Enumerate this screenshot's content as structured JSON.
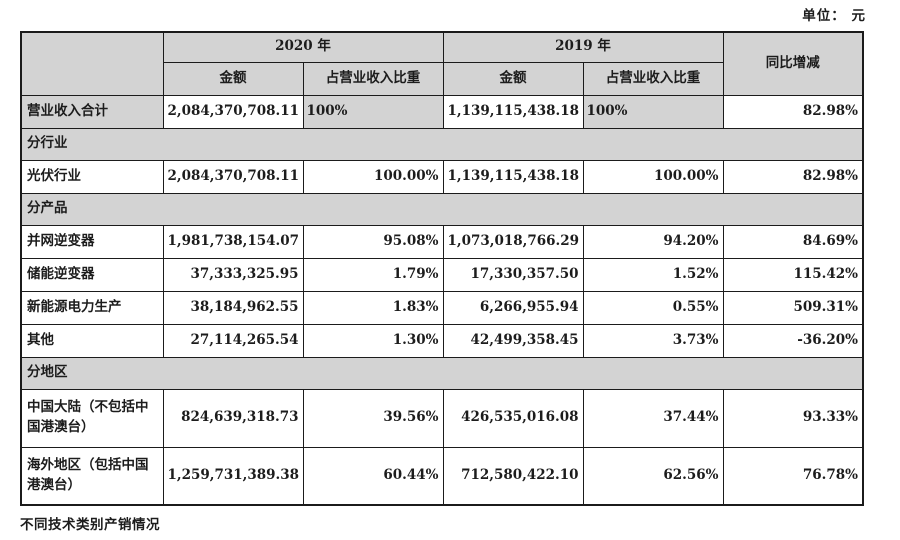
{
  "unit_label": "单位： 元",
  "footer_note": "不同技术类别产销情况",
  "table": {
    "header": {
      "corner": "",
      "year_2020": "2020 年",
      "year_2019": "2019 年",
      "amount": "金额",
      "ratio": "占营业收入比重",
      "yoy": "同比增减"
    },
    "colors": {
      "header_fill": "#d3d3d3",
      "border": "#1b1b1b",
      "cell_fill": "#ffffff"
    },
    "rows": [
      {
        "kind": "summary",
        "label": "营业收入合计",
        "amount_2020": "2,084,370,708.11",
        "ratio_2020": "100%",
        "amount_2019": "1,139,115,438.18",
        "ratio_2019": "100%",
        "yoy": "82.98%"
      },
      {
        "kind": "section",
        "label": "分行业"
      },
      {
        "kind": "data",
        "label": "光伏行业",
        "amount_2020": "2,084,370,708.11",
        "ratio_2020": "100.00%",
        "amount_2019": "1,139,115,438.18",
        "ratio_2019": "100.00%",
        "yoy": "82.98%"
      },
      {
        "kind": "section",
        "label": "分产品"
      },
      {
        "kind": "data",
        "label": "并网逆变器",
        "amount_2020": "1,981,738,154.07",
        "ratio_2020": "95.08%",
        "amount_2019": "1,073,018,766.29",
        "ratio_2019": "94.20%",
        "yoy": "84.69%"
      },
      {
        "kind": "data",
        "label": "储能逆变器",
        "amount_2020": "37,333,325.95",
        "ratio_2020": "1.79%",
        "amount_2019": "17,330,357.50",
        "ratio_2019": "1.52%",
        "yoy": "115.42%"
      },
      {
        "kind": "data",
        "label": "新能源电力生产",
        "amount_2020": "38,184,962.55",
        "ratio_2020": "1.83%",
        "amount_2019": "6,266,955.94",
        "ratio_2019": "0.55%",
        "yoy": "509.31%"
      },
      {
        "kind": "data",
        "label": "其他",
        "amount_2020": "27,114,265.54",
        "ratio_2020": "1.30%",
        "amount_2019": "42,499,358.45",
        "ratio_2019": "3.73%",
        "yoy": "-36.20%"
      },
      {
        "kind": "section",
        "label": "分地区"
      },
      {
        "kind": "data",
        "tall": true,
        "label": "中国大陆（不包括中国港澳台）",
        "amount_2020": "824,639,318.73",
        "ratio_2020": "39.56%",
        "amount_2019": "426,535,016.08",
        "ratio_2019": "37.44%",
        "yoy": "93.33%"
      },
      {
        "kind": "data",
        "tall": true,
        "label": "海外地区（包括中国港澳台）",
        "amount_2020": "1,259,731,389.38",
        "ratio_2020": "60.44%",
        "amount_2019": "712,580,422.10",
        "ratio_2019": "62.56%",
        "yoy": "76.78%"
      }
    ]
  }
}
